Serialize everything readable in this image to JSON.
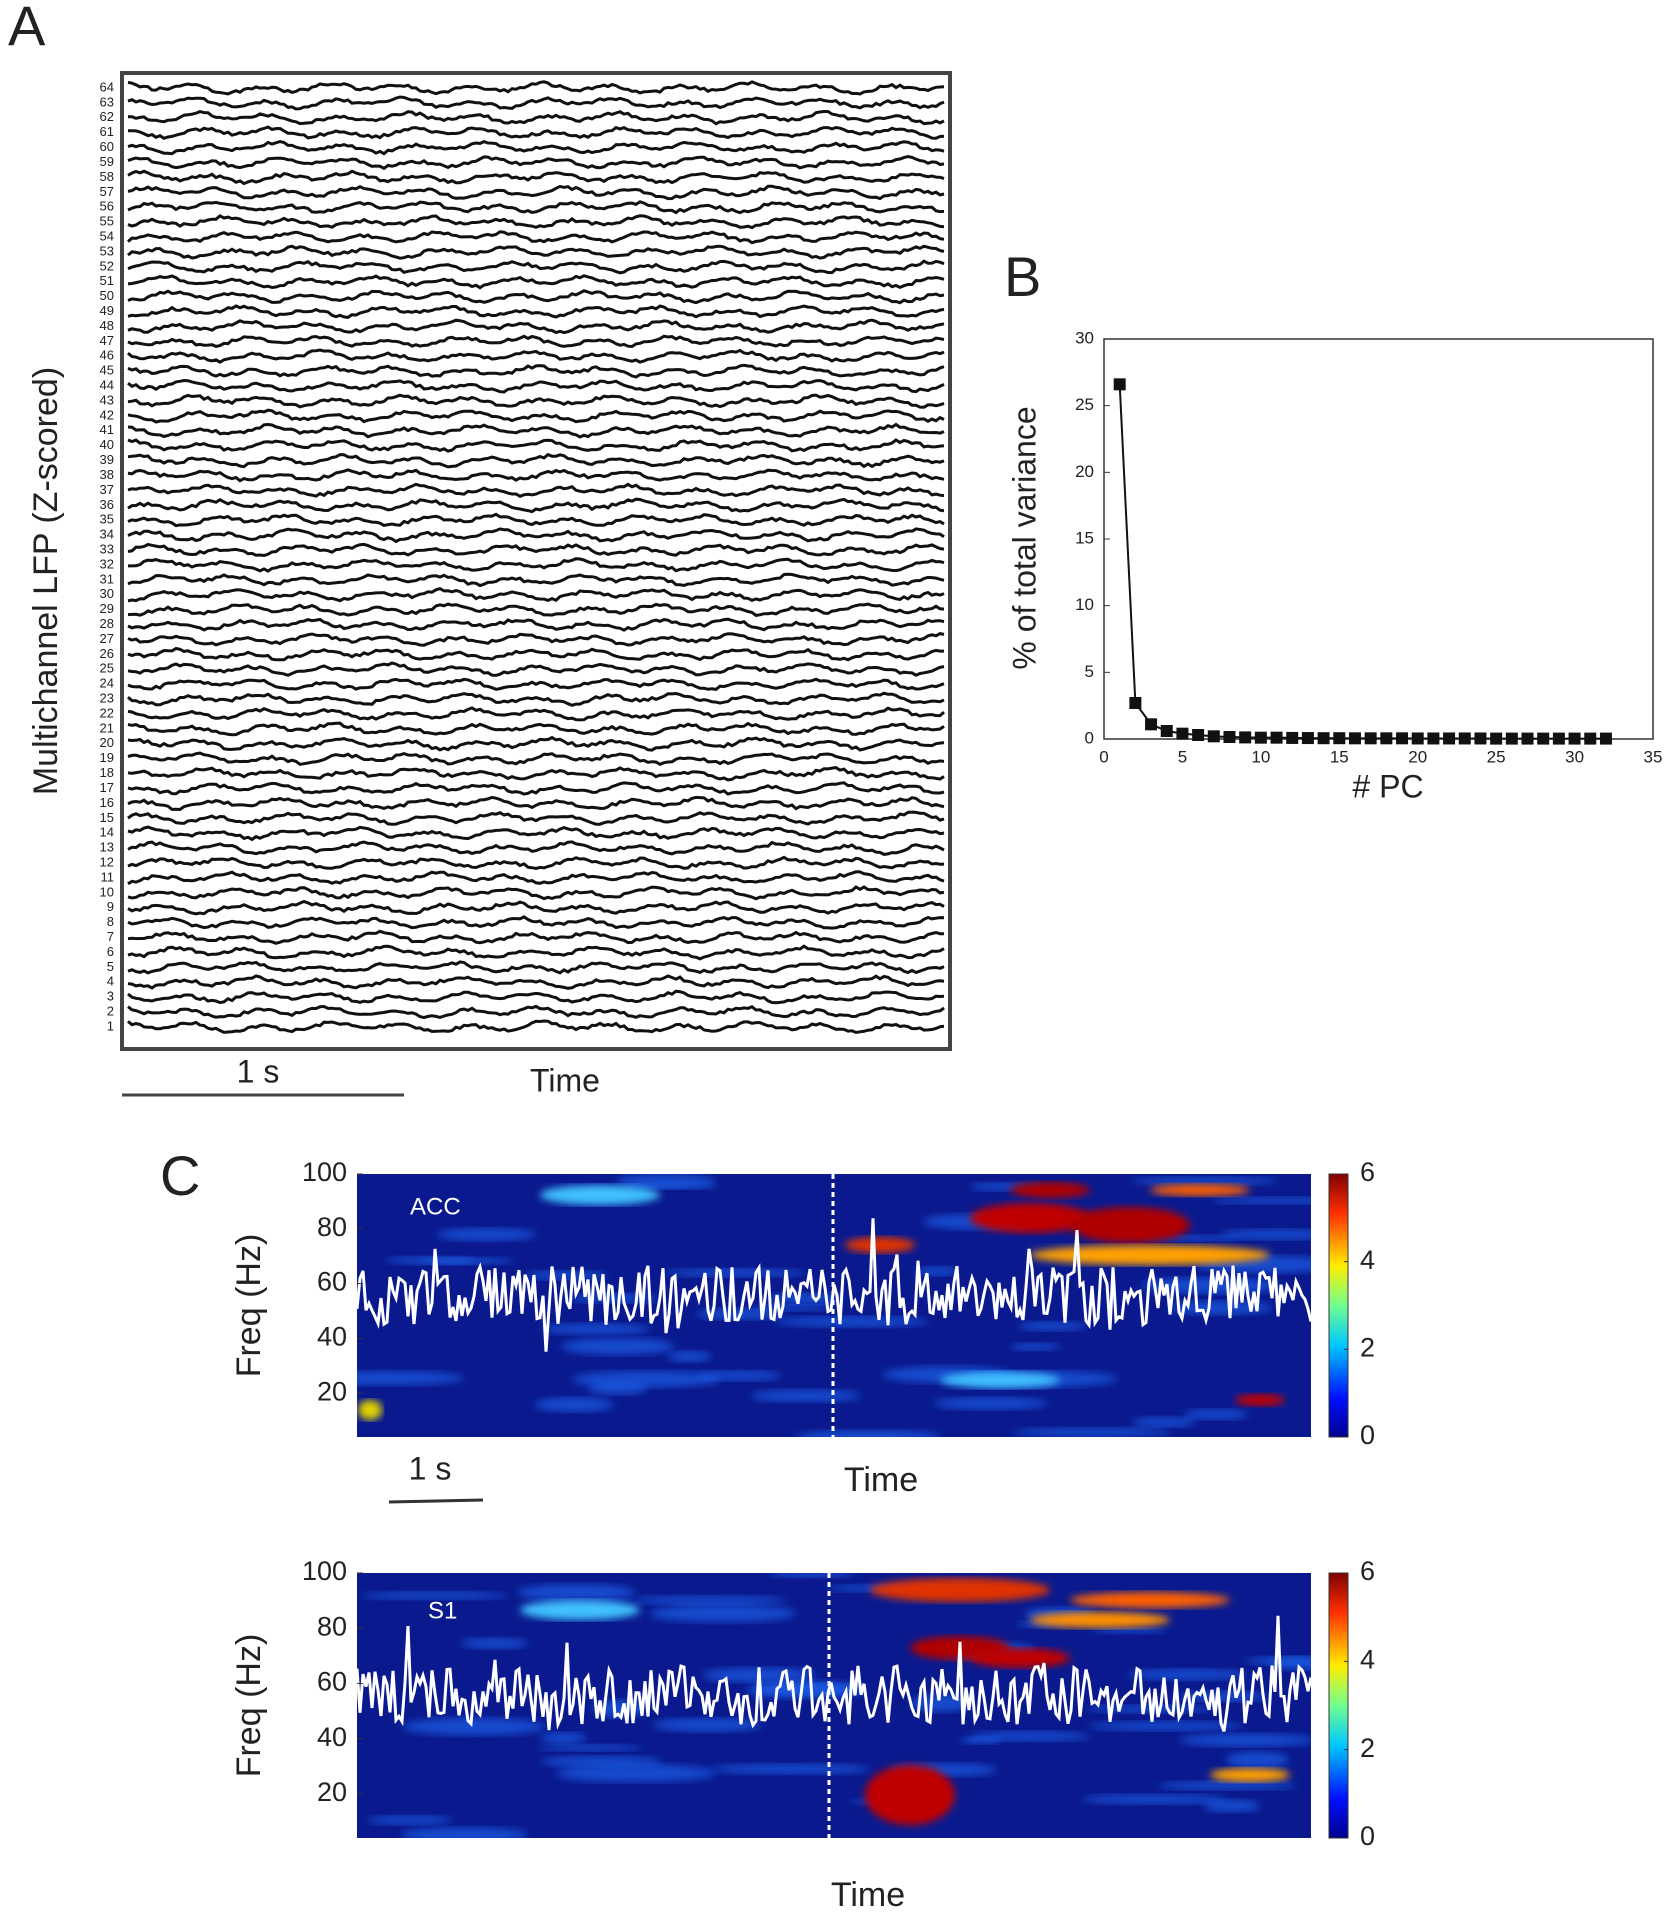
{
  "chart_data": [
    {
      "type": "line",
      "panel": "A",
      "ylabel": "Multichannel  LFP (Z-scored)",
      "xlabel": "Time",
      "scale_bar": "1 s",
      "channels": [
        1,
        2,
        3,
        4,
        5,
        6,
        7,
        8,
        9,
        10,
        11,
        12,
        13,
        14,
        15,
        16,
        17,
        18,
        19,
        20,
        21,
        22,
        23,
        24,
        25,
        26,
        27,
        28,
        29,
        30,
        31,
        32,
        33,
        34,
        35,
        36,
        37,
        38,
        39,
        40,
        41,
        42,
        43,
        44,
        45,
        46,
        47,
        48,
        49,
        50,
        51,
        52,
        53,
        54,
        55,
        56,
        57,
        58,
        59,
        60,
        61,
        62,
        63,
        64
      ]
    },
    {
      "type": "line",
      "panel": "B",
      "xlabel": "# PC",
      "ylabel": "% of total variance",
      "x": [
        1,
        2,
        3,
        4,
        5,
        6,
        7,
        8,
        9,
        10,
        11,
        12,
        13,
        14,
        15,
        16,
        17,
        18,
        19,
        20,
        21,
        22,
        23,
        24,
        25,
        26,
        27,
        28,
        29,
        30,
        31,
        32
      ],
      "series": [
        {
          "color": "#111111",
          "values": [
            26.6,
            2.7,
            1.1,
            0.6,
            0.4,
            0.3,
            0.2,
            0.15,
            0.12,
            0.1,
            0.1,
            0.08,
            0.07,
            0.06,
            0.06,
            0.05,
            0.05,
            0.05,
            0.05,
            0.04,
            0.04,
            0.04,
            0.04,
            0.04,
            0.03,
            0.03,
            0.03,
            0.03,
            0.03,
            0.03,
            0.03,
            0.03
          ]
        }
      ],
      "xlim": [
        0,
        35
      ],
      "xticks": [
        0,
        5,
        10,
        15,
        20,
        25,
        30,
        35
      ],
      "ylim": [
        0,
        30
      ],
      "yticks": [
        0,
        5,
        10,
        15,
        20,
        25,
        30
      ]
    },
    {
      "type": "heatmap",
      "panel": "C",
      "label": "ACC",
      "ylabel": "Freq (Hz)",
      "xlabel": "Time",
      "scale_bar": "1 s",
      "ylim": [
        4,
        100
      ],
      "yticks": [
        20,
        40,
        60,
        80,
        100
      ],
      "clim": [
        0,
        6
      ],
      "cticks": [
        0,
        2,
        4,
        6
      ]
    },
    {
      "type": "heatmap",
      "label": "S1",
      "ylabel": "Freq (Hz)",
      "xlabel": "Time",
      "ylim": [
        4,
        100
      ],
      "yticks": [
        20,
        40,
        60,
        80,
        100
      ],
      "clim": [
        0,
        6
      ],
      "cticks": [
        0,
        2,
        4,
        6
      ]
    }
  ]
}
